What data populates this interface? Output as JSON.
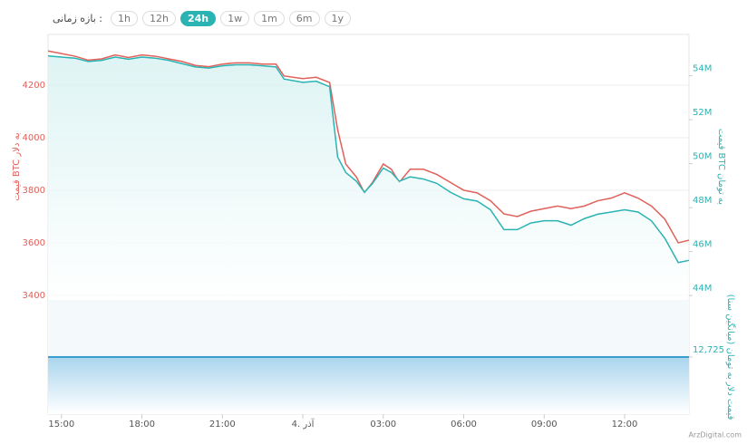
{
  "controls": {
    "label": "بازه زمانی :",
    "buttons": [
      "1h",
      "12h",
      "24h",
      "1w",
      "1m",
      "6m",
      "1y"
    ],
    "active": 2
  },
  "watermark": "ArzDigital.com",
  "chart_data": [
    {
      "type": "line",
      "y_label": "قیمت BTC به دلار",
      "y2_label": "قیمت BTC به تومان",
      "xlim": [
        14.5,
        38.4
      ],
      "ylim": [
        3386,
        4393
      ],
      "yticks": [
        3400,
        3600,
        3800,
        4000,
        4200
      ],
      "y2lim": [
        43.84,
        55.88
      ],
      "y2ticks": [
        {
          "value": 44,
          "label": "44M"
        },
        {
          "value": 46,
          "label": "46M"
        },
        {
          "value": 48,
          "label": "48M"
        },
        {
          "value": 50,
          "label": "50M"
        },
        {
          "value": 52,
          "label": "52M"
        },
        {
          "value": 54,
          "label": "54M"
        }
      ],
      "grid": true,
      "x": [
        14.5,
        15,
        15.5,
        16,
        16.5,
        17,
        17.5,
        18,
        18.5,
        19,
        19.5,
        20,
        20.5,
        21,
        21.5,
        22,
        22.5,
        23,
        23.3,
        24,
        24.5,
        25,
        25.3,
        25.6,
        26,
        26.3,
        26.6,
        27,
        27.3,
        27.6,
        28,
        28.5,
        29,
        29.5,
        30,
        30.5,
        31,
        31.5,
        32,
        32.5,
        33,
        33.5,
        34,
        34.5,
        35,
        35.5,
        36,
        36.5,
        37,
        37.5,
        38,
        38.4
      ],
      "series": [
        {
          "color": "#e0605a",
          "axis": "y",
          "values": [
            4330,
            4320,
            4310,
            4295,
            4300,
            4315,
            4305,
            4315,
            4310,
            4300,
            4290,
            4275,
            4270,
            4280,
            4285,
            4285,
            4280,
            4280,
            4235,
            4225,
            4230,
            4210,
            4030,
            3900,
            3850,
            3790,
            3830,
            3900,
            3880,
            3830,
            3880,
            3880,
            3860,
            3830,
            3800,
            3790,
            3760,
            3710,
            3700,
            3720,
            3730,
            3740,
            3730,
            3740,
            3760,
            3770,
            3790,
            3770,
            3740,
            3690,
            3600,
            3610
          ]
        },
        {
          "color": "#2ab3b3",
          "axis": "y2",
          "values": [
            54.9,
            54.85,
            54.8,
            54.65,
            54.7,
            54.85,
            54.75,
            54.85,
            54.8,
            54.7,
            54.55,
            54.4,
            54.35,
            54.45,
            54.5,
            54.5,
            54.45,
            54.4,
            53.85,
            53.7,
            53.75,
            53.5,
            50.3,
            49.6,
            49.2,
            48.7,
            49.1,
            49.8,
            49.6,
            49.2,
            49.4,
            49.3,
            49.1,
            48.7,
            48.4,
            48.3,
            47.9,
            47.0,
            47.0,
            47.3,
            47.4,
            47.4,
            47.2,
            47.5,
            47.7,
            47.8,
            47.9,
            47.8,
            47.4,
            46.6,
            45.5,
            45.6
          ]
        }
      ]
    },
    {
      "type": "area",
      "y2_label": "قیمت دلار به تومان (میانگین سنا)",
      "xlim": [
        14.5,
        38.4
      ],
      "xticks": [
        {
          "value": 15,
          "label": "15:00"
        },
        {
          "value": 18,
          "label": "18:00"
        },
        {
          "value": 21,
          "label": "21:00"
        },
        {
          "value": 24,
          "label": "4. آذر"
        },
        {
          "value": 27,
          "label": "03:00"
        },
        {
          "value": 30,
          "label": "06:00"
        },
        {
          "value": 33,
          "label": "09:00"
        },
        {
          "value": 36,
          "label": "12:00"
        }
      ],
      "y2lim": [
        12600,
        12850
      ],
      "y2ticks": [
        {
          "value": 12725,
          "label": "12,725"
        }
      ],
      "x": [
        14.5,
        38.4
      ],
      "color": "#3a9fcc",
      "values": [
        12725,
        12725
      ]
    }
  ]
}
